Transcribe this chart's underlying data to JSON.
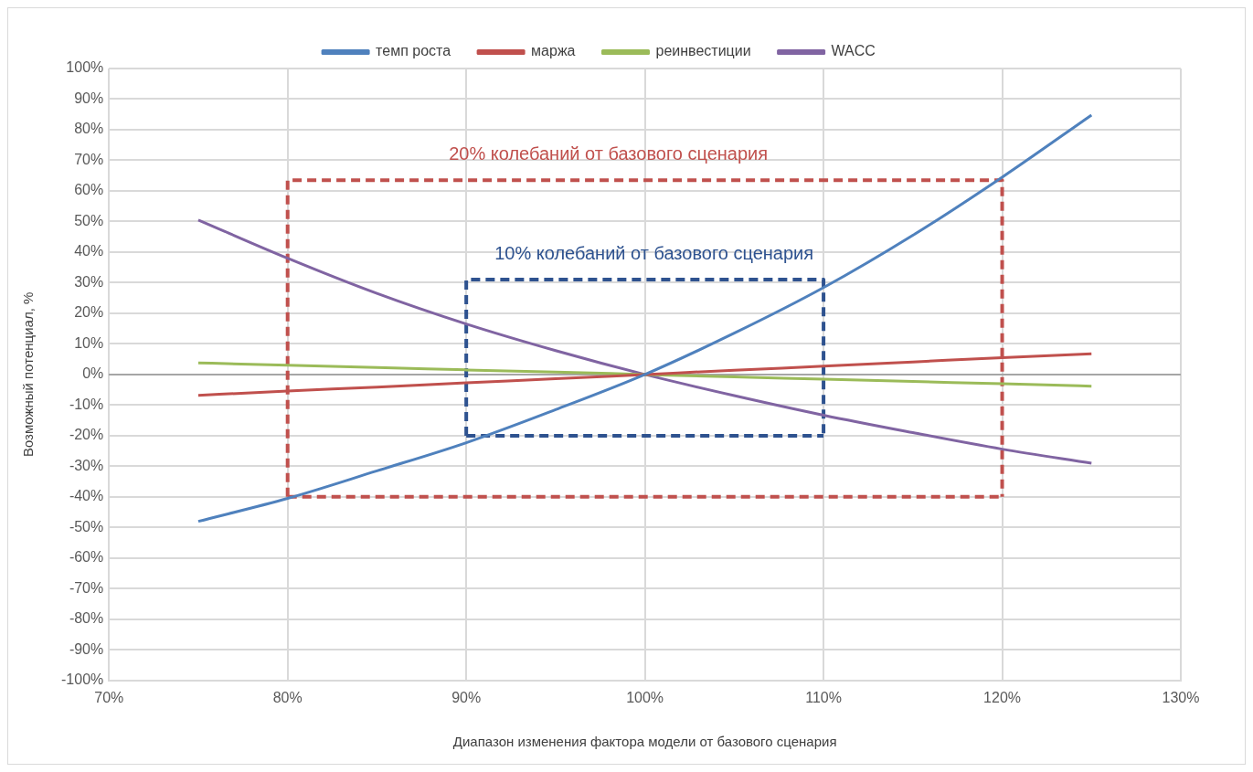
{
  "chart_data": {
    "type": "line",
    "xlabel": "Диапазон изменения фактора модели от базового сценария",
    "ylabel": "Возможный потенциал, %",
    "legend": "top",
    "grid": true,
    "marker": "none",
    "xlim": [
      70,
      130
    ],
    "xticks": [
      {
        "value": 70,
        "label": "70%"
      },
      {
        "value": 80,
        "label": "80%"
      },
      {
        "value": 90,
        "label": "90%"
      },
      {
        "value": 100,
        "label": "100%"
      },
      {
        "value": 110,
        "label": "110%"
      },
      {
        "value": 120,
        "label": "120%"
      },
      {
        "value": 130,
        "label": "130%"
      }
    ],
    "ylim": [
      -100,
      100
    ],
    "yticks": [
      {
        "value": -100,
        "label": "-100%"
      },
      {
        "value": -90,
        "label": "-90%"
      },
      {
        "value": -80,
        "label": "-80%"
      },
      {
        "value": -70,
        "label": "-70%"
      },
      {
        "value": -60,
        "label": "-60%"
      },
      {
        "value": -50,
        "label": "-50%"
      },
      {
        "value": -40,
        "label": "-40%"
      },
      {
        "value": -30,
        "label": "-30%"
      },
      {
        "value": -20,
        "label": "-20%"
      },
      {
        "value": -10,
        "label": "-10%"
      },
      {
        "value": 0,
        "label": "0%"
      },
      {
        "value": 10,
        "label": "10%"
      },
      {
        "value": 20,
        "label": "20%"
      },
      {
        "value": 30,
        "label": "30%"
      },
      {
        "value": 40,
        "label": "40%"
      },
      {
        "value": 50,
        "label": "50%"
      },
      {
        "value": 60,
        "label": "60%"
      },
      {
        "value": 70,
        "label": "70%"
      },
      {
        "value": 80,
        "label": "80%"
      },
      {
        "value": 90,
        "label": "90%"
      },
      {
        "value": 100,
        "label": "100%"
      }
    ],
    "x": [
      75,
      80,
      85,
      90,
      95,
      100,
      105,
      110,
      115,
      120,
      125
    ],
    "series": [
      {
        "name": "темп роста",
        "color": "#4f81bd",
        "line_style": "solid",
        "values": [
          -48,
          -40.5,
          -31.5,
          -22.3,
          -11.5,
          0,
          13.5,
          28.4,
          45.5,
          64.5,
          84.8
        ]
      },
      {
        "name": "маржа",
        "color": "#c0504d",
        "line_style": "solid",
        "values": [
          -6.8,
          -5.4,
          -4.1,
          -2.7,
          -1.4,
          0,
          1.4,
          2.7,
          4.1,
          5.5,
          6.8
        ]
      },
      {
        "name": "реинвестиции",
        "color": "#9bbb59",
        "line_style": "solid",
        "values": [
          3.8,
          3,
          2.3,
          1.5,
          0.8,
          0,
          -0.8,
          -1.5,
          -2.3,
          -3,
          -3.8
        ]
      },
      {
        "name": "WACC",
        "color": "#8064a2",
        "line_style": "solid",
        "values": [
          50.5,
          38,
          26.5,
          16.5,
          7.8,
          0,
          -6.9,
          -13.3,
          -19,
          -24.4,
          -29
        ]
      },
      {
        "color": "#c0504d",
        "line_style": "dashed",
        "x": [
          80,
          80,
          120,
          120
        ],
        "values": [
          -40,
          63.5,
          63.5,
          -40
        ]
      },
      {
        "color": "#2e528f",
        "line_style": "dashed",
        "x": [
          90,
          90,
          110,
          110
        ],
        "values": [
          -20,
          31,
          31,
          -20
        ]
      },
      {
        "color": "#c0504d",
        "line_style": "dashed",
        "x": [
          80,
          120
        ],
        "values": [
          -40,
          -40
        ]
      },
      {
        "color": "#2e528f",
        "line_style": "dashed",
        "x": [
          90,
          110
        ],
        "values": [
          -20,
          -20
        ]
      }
    ],
    "annotations": [
      "20% колебаний от базового сценария",
      "10% колебаний от базового сценария"
    ]
  }
}
